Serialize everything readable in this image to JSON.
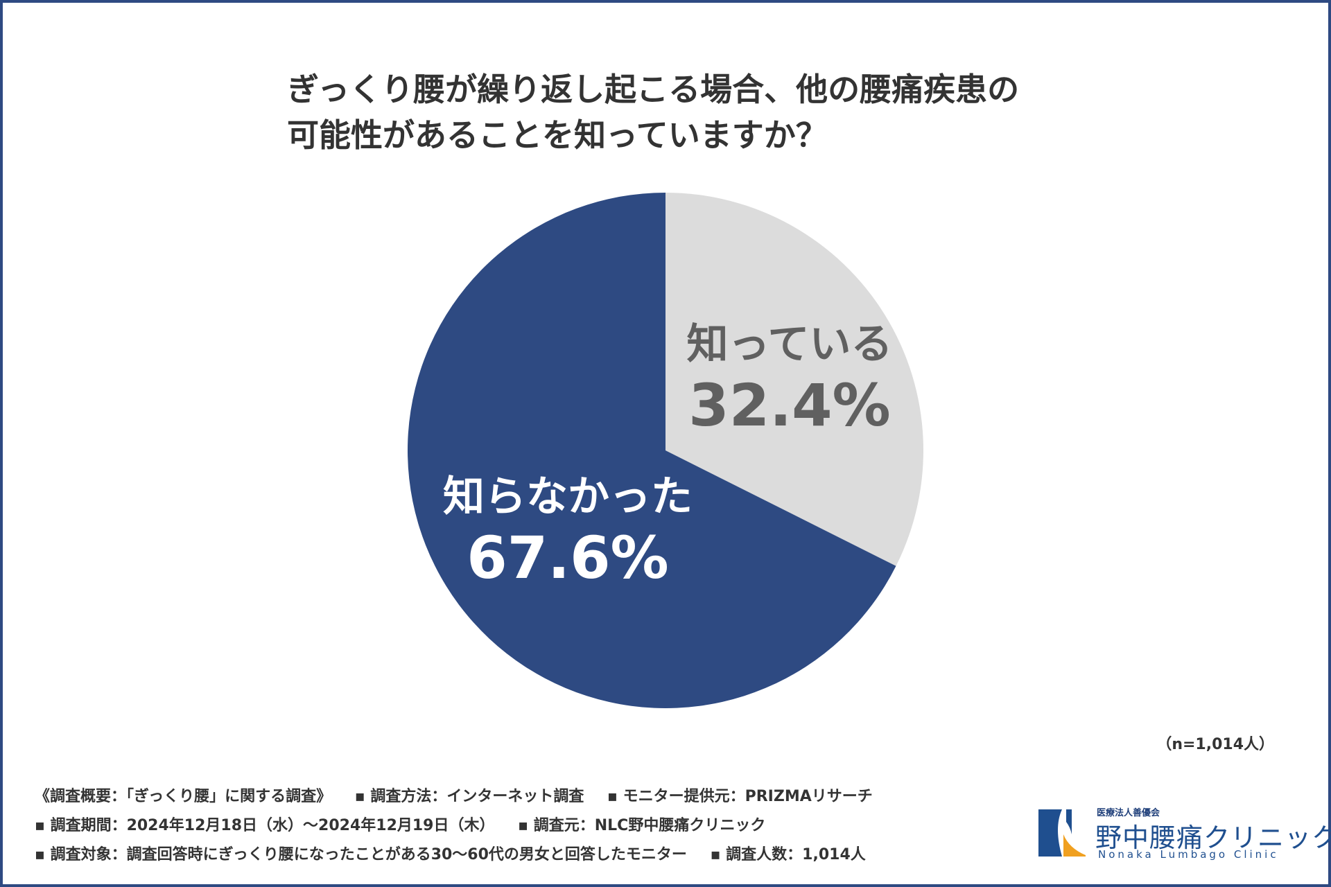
{
  "title": {
    "line1": "ぎっくり腰が繰り返し起こる場合、他の腰痛疾患の",
    "line2": "可能性があることを知っていますか？"
  },
  "chart_data": {
    "type": "pie",
    "categories": [
      "知っている",
      "知らなかった"
    ],
    "values": [
      32.4,
      67.6
    ],
    "labels": {
      "known_name": "知っている",
      "known_pct": "32.4%",
      "unknown_name": "知らなかった",
      "unknown_pct": "67.6%"
    },
    "colors": [
      "#dcdcdc",
      "#2e4a82"
    ],
    "start_angle": "12 o'clock, clockwise"
  },
  "sample_size": "（n=1,014人）",
  "notes": {
    "line1": [
      "《調査概要：「ぎっくり腰」に関する調査》",
      "▪ 調査方法：インターネット調査",
      "▪ モニター提供元：PRIZMAリサーチ"
    ],
    "line2": [
      "▪ 調査期間：2024年12月18日（水）～2024年12月19日（木）",
      "▪ 調査元：NLC野中腰痛クリニック"
    ],
    "line3": [
      "▪ 調査対象：調査回答時にぎっくり腰になったことがある30～60代の男女と回答したモニター",
      "▪ 調査人数：1,014人"
    ]
  },
  "logo": {
    "org": "医療法人善優会",
    "name": "野中腰痛クリニック",
    "en": "Nonaka Lumbago Clinic",
    "colors": {
      "blue": "#1f4f8f",
      "orange": "#f0a020"
    }
  }
}
